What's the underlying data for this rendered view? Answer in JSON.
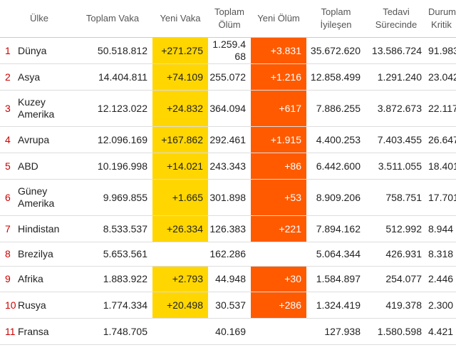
{
  "table": {
    "headers": [
      {
        "key": "rank",
        "label": ""
      },
      {
        "key": "country",
        "label": "Ülke"
      },
      {
        "key": "total_cases",
        "label": "Toplam Vaka"
      },
      {
        "key": "new_cases",
        "label": "Yeni Vaka"
      },
      {
        "key": "total_deaths",
        "label": "Toplam Ölüm"
      },
      {
        "key": "new_deaths",
        "label": "Yeni Ölüm"
      },
      {
        "key": "total_recovered",
        "label": "Toplam İyileşen"
      },
      {
        "key": "active",
        "label": "Tedavi Sürecinde"
      },
      {
        "key": "critical",
        "label": "Durumu Kritik"
      }
    ],
    "rows": [
      {
        "rank": "1",
        "country": "Dünya",
        "total_cases": "50.518.812",
        "new_cases": "+271.275",
        "total_deaths": "1.259.468",
        "new_deaths": "+3.831",
        "total_recovered": "35.672.620",
        "active": "13.586.724",
        "critical": "91.983"
      },
      {
        "rank": "2",
        "country": "Asya",
        "total_cases": "14.404.811",
        "new_cases": "+74.109",
        "total_deaths": "255.072",
        "new_deaths": "+1.216",
        "total_recovered": "12.858.499",
        "active": "1.291.240",
        "critical": "23.042"
      },
      {
        "rank": "3",
        "country": "Kuzey Amerika",
        "total_cases": "12.123.022",
        "new_cases": "+24.832",
        "total_deaths": "364.094",
        "new_deaths": "+617",
        "total_recovered": "7.886.255",
        "active": "3.872.673",
        "critical": "22.117"
      },
      {
        "rank": "4",
        "country": "Avrupa",
        "total_cases": "12.096.169",
        "new_cases": "+167.862",
        "total_deaths": "292.461",
        "new_deaths": "+1.915",
        "total_recovered": "4.400.253",
        "active": "7.403.455",
        "critical": "26.647"
      },
      {
        "rank": "5",
        "country": "ABD",
        "total_cases": "10.196.998",
        "new_cases": "+14.021",
        "total_deaths": "243.343",
        "new_deaths": "+86",
        "total_recovered": "6.442.600",
        "active": "3.511.055",
        "critical": "18.401"
      },
      {
        "rank": "6",
        "country": "Güney Amerika",
        "total_cases": "9.969.855",
        "new_cases": "+1.665",
        "total_deaths": "301.898",
        "new_deaths": "+53",
        "total_recovered": "8.909.206",
        "active": "758.751",
        "critical": "17.701"
      },
      {
        "rank": "7",
        "country": "Hindistan",
        "total_cases": "8.533.537",
        "new_cases": "+26.334",
        "total_deaths": "126.383",
        "new_deaths": "+221",
        "total_recovered": "7.894.162",
        "active": "512.992",
        "critical": "8.944"
      },
      {
        "rank": "8",
        "country": "Brezilya",
        "total_cases": "5.653.561",
        "new_cases": "",
        "total_deaths": "162.286",
        "new_deaths": "",
        "total_recovered": "5.064.344",
        "active": "426.931",
        "critical": "8.318"
      },
      {
        "rank": "9",
        "country": "Afrika",
        "total_cases": "1.883.922",
        "new_cases": "+2.793",
        "total_deaths": "44.948",
        "new_deaths": "+30",
        "total_recovered": "1.584.897",
        "active": "254.077",
        "critical": "2.446"
      },
      {
        "rank": "10",
        "country": "Rusya",
        "total_cases": "1.774.334",
        "new_cases": "+20.498",
        "total_deaths": "30.537",
        "new_deaths": "+286",
        "total_recovered": "1.324.419",
        "active": "419.378",
        "critical": "2.300"
      },
      {
        "rank": "11",
        "country": "Fransa",
        "total_cases": "1.748.705",
        "new_cases": "",
        "total_deaths": "40.169",
        "new_deaths": "",
        "total_recovered": "127.938",
        "active": "1.580.598",
        "critical": "4.421"
      }
    ]
  },
  "colors": {
    "new_cases_highlight": "#ffd600",
    "new_deaths_highlight": "#ff5a00",
    "rank_text": "#cc0000"
  }
}
